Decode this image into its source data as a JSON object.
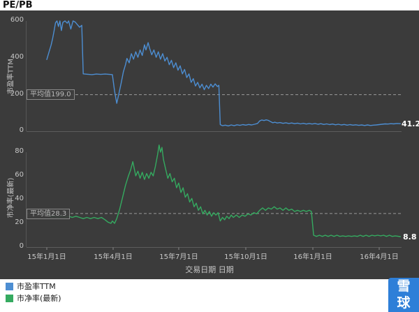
{
  "header": {
    "title": "PE/PB"
  },
  "chart_data": [
    {
      "type": "line",
      "name": "市盈率TTM",
      "ylabel": "市盈率TTM",
      "color": "#4d8ed2",
      "ylim": [
        0,
        600
      ],
      "yticks": [
        0,
        200,
        400,
        600
      ],
      "average": 199.0,
      "average_label": "平均值199.0",
      "last_value": "41.2",
      "x_unit": "day_index_from_2015-01-01",
      "points": [
        [
          0,
          390
        ],
        [
          3,
          430
        ],
        [
          6,
          470
        ],
        [
          8,
          505
        ],
        [
          10,
          545
        ],
        [
          12,
          590
        ],
        [
          14,
          600
        ],
        [
          16,
          570
        ],
        [
          18,
          600
        ],
        [
          20,
          548
        ],
        [
          22,
          592
        ],
        [
          25,
          600
        ],
        [
          28,
          588
        ],
        [
          30,
          600
        ],
        [
          33,
          556
        ],
        [
          36,
          600
        ],
        [
          39,
          594
        ],
        [
          42,
          580
        ],
        [
          45,
          566
        ],
        [
          48,
          576
        ],
        [
          50,
          312
        ],
        [
          56,
          310
        ],
        [
          62,
          308
        ],
        [
          68,
          311
        ],
        [
          74,
          309
        ],
        [
          80,
          311
        ],
        [
          86,
          309
        ],
        [
          90,
          308
        ],
        [
          93,
          218
        ],
        [
          96,
          152
        ],
        [
          99,
          205
        ],
        [
          102,
          262
        ],
        [
          105,
          322
        ],
        [
          108,
          362
        ],
        [
          110,
          396
        ],
        [
          113,
          372
        ],
        [
          116,
          422
        ],
        [
          119,
          392
        ],
        [
          122,
          432
        ],
        [
          125,
          402
        ],
        [
          128,
          442
        ],
        [
          131,
          412
        ],
        [
          134,
          470
        ],
        [
          136,
          442
        ],
        [
          139,
          482
        ],
        [
          141,
          452
        ],
        [
          144,
          416
        ],
        [
          147,
          442
        ],
        [
          150,
          402
        ],
        [
          153,
          432
        ],
        [
          156,
          392
        ],
        [
          159,
          422
        ],
        [
          162,
          382
        ],
        [
          165,
          402
        ],
        [
          168,
          362
        ],
        [
          171,
          386
        ],
        [
          174,
          346
        ],
        [
          177,
          372
        ],
        [
          180,
          332
        ],
        [
          183,
          356
        ],
        [
          186,
          312
        ],
        [
          189,
          336
        ],
        [
          192,
          292
        ],
        [
          195,
          312
        ],
        [
          198,
          266
        ],
        [
          201,
          286
        ],
        [
          204,
          246
        ],
        [
          207,
          266
        ],
        [
          210,
          236
        ],
        [
          213,
          256
        ],
        [
          216,
          226
        ],
        [
          219,
          250
        ],
        [
          222,
          232
        ],
        [
          225,
          256
        ],
        [
          228,
          240
        ],
        [
          231,
          258
        ],
        [
          234,
          243
        ],
        [
          236,
          250
        ],
        [
          238,
          36
        ],
        [
          241,
          30
        ],
        [
          245,
          33
        ],
        [
          249,
          29
        ],
        [
          253,
          34
        ],
        [
          257,
          30
        ],
        [
          261,
          35
        ],
        [
          265,
          32
        ],
        [
          269,
          36
        ],
        [
          273,
          33
        ],
        [
          277,
          37
        ],
        [
          281,
          34
        ],
        [
          285,
          38
        ],
        [
          289,
          42
        ],
        [
          292,
          56
        ],
        [
          295,
          61
        ],
        [
          298,
          58
        ],
        [
          301,
          62
        ],
        [
          304,
          59
        ],
        [
          307,
          52
        ],
        [
          310,
          46
        ],
        [
          313,
          49
        ],
        [
          316,
          45
        ],
        [
          320,
          47
        ],
        [
          324,
          43
        ],
        [
          328,
          46
        ],
        [
          332,
          42
        ],
        [
          336,
          45
        ],
        [
          340,
          41
        ],
        [
          344,
          44
        ],
        [
          348,
          40
        ],
        [
          352,
          43
        ],
        [
          356,
          39
        ],
        [
          360,
          42
        ],
        [
          364,
          39
        ],
        [
          368,
          42
        ],
        [
          372,
          38
        ],
        [
          376,
          41
        ],
        [
          380,
          37
        ],
        [
          384,
          40
        ],
        [
          388,
          36
        ],
        [
          392,
          39
        ],
        [
          396,
          35
        ],
        [
          400,
          38
        ],
        [
          404,
          34
        ],
        [
          408,
          37
        ],
        [
          412,
          33
        ],
        [
          416,
          36
        ],
        [
          420,
          33
        ],
        [
          424,
          35
        ],
        [
          428,
          32
        ],
        [
          432,
          34
        ],
        [
          436,
          31
        ],
        [
          440,
          34
        ],
        [
          444,
          31
        ],
        [
          448,
          33
        ],
        [
          452,
          34
        ],
        [
          456,
          36
        ],
        [
          460,
          38
        ],
        [
          464,
          40
        ],
        [
          468,
          39
        ],
        [
          472,
          41
        ],
        [
          476,
          40
        ],
        [
          480,
          42
        ],
        [
          485,
          41.2
        ]
      ]
    },
    {
      "type": "line",
      "name": "市净率(最新)",
      "ylabel": "市净率(最新)",
      "color": "#35aa60",
      "ylim": [
        0,
        80
      ],
      "yticks": [
        0,
        20,
        40,
        60,
        80
      ],
      "average": 28.3,
      "average_label": "平均值28.3",
      "last_value": "8.8",
      "x_unit": "day_index_from_2015-01-01",
      "points": [
        [
          0,
          29
        ],
        [
          3,
          27
        ],
        [
          6,
          25
        ],
        [
          10,
          26
        ],
        [
          15,
          25
        ],
        [
          20,
          26
        ],
        [
          25,
          25
        ],
        [
          30,
          26
        ],
        [
          35,
          25
        ],
        [
          40,
          26
        ],
        [
          45,
          25
        ],
        [
          50,
          24
        ],
        [
          55,
          25
        ],
        [
          60,
          24
        ],
        [
          65,
          25
        ],
        [
          70,
          24
        ],
        [
          75,
          25
        ],
        [
          80,
          23
        ],
        [
          84,
          21
        ],
        [
          88,
          20
        ],
        [
          90,
          22
        ],
        [
          93,
          20
        ],
        [
          96,
          24
        ],
        [
          100,
          32
        ],
        [
          104,
          42
        ],
        [
          108,
          52
        ],
        [
          112,
          60
        ],
        [
          115,
          65
        ],
        [
          118,
          72
        ],
        [
          120,
          66
        ],
        [
          122,
          60
        ],
        [
          125,
          64
        ],
        [
          128,
          58
        ],
        [
          131,
          63
        ],
        [
          134,
          57
        ],
        [
          137,
          62
        ],
        [
          140,
          58
        ],
        [
          143,
          63
        ],
        [
          146,
          60
        ],
        [
          149,
          68
        ],
        [
          152,
          78
        ],
        [
          154,
          86
        ],
        [
          156,
          80
        ],
        [
          158,
          84
        ],
        [
          160,
          74
        ],
        [
          163,
          66
        ],
        [
          166,
          58
        ],
        [
          169,
          62
        ],
        [
          172,
          55
        ],
        [
          175,
          58
        ],
        [
          178,
          50
        ],
        [
          181,
          54
        ],
        [
          184,
          46
        ],
        [
          187,
          50
        ],
        [
          190,
          42
        ],
        [
          193,
          45
        ],
        [
          196,
          38
        ],
        [
          199,
          41
        ],
        [
          202,
          34
        ],
        [
          205,
          37
        ],
        [
          208,
          31
        ],
        [
          211,
          34
        ],
        [
          214,
          28
        ],
        [
          217,
          31
        ],
        [
          220,
          27
        ],
        [
          223,
          30
        ],
        [
          226,
          26
        ],
        [
          229,
          29
        ],
        [
          232,
          27
        ],
        [
          235,
          29
        ],
        [
          238,
          22
        ],
        [
          241,
          25
        ],
        [
          244,
          23
        ],
        [
          247,
          26
        ],
        [
          250,
          24
        ],
        [
          253,
          27
        ],
        [
          256,
          25
        ],
        [
          260,
          27
        ],
        [
          264,
          25
        ],
        [
          268,
          27
        ],
        [
          272,
          26
        ],
        [
          276,
          28
        ],
        [
          280,
          27
        ],
        [
          284,
          29
        ],
        [
          288,
          28
        ],
        [
          292,
          31
        ],
        [
          296,
          33
        ],
        [
          300,
          31
        ],
        [
          304,
          33
        ],
        [
          308,
          32
        ],
        [
          312,
          34
        ],
        [
          316,
          32
        ],
        [
          320,
          33
        ],
        [
          324,
          31
        ],
        [
          328,
          33
        ],
        [
          332,
          31
        ],
        [
          336,
          32
        ],
        [
          340,
          30
        ],
        [
          344,
          31
        ],
        [
          348,
          30
        ],
        [
          352,
          31
        ],
        [
          356,
          30
        ],
        [
          360,
          31
        ],
        [
          363,
          30
        ],
        [
          366,
          10
        ],
        [
          370,
          9
        ],
        [
          374,
          10
        ],
        [
          378,
          9
        ],
        [
          382,
          10
        ],
        [
          386,
          9
        ],
        [
          390,
          10
        ],
        [
          394,
          9
        ],
        [
          398,
          10
        ],
        [
          402,
          9
        ],
        [
          406,
          9.5
        ],
        [
          410,
          9
        ],
        [
          414,
          9.5
        ],
        [
          418,
          9
        ],
        [
          422,
          9.5
        ],
        [
          426,
          9
        ],
        [
          430,
          10
        ],
        [
          434,
          9
        ],
        [
          438,
          10
        ],
        [
          442,
          9
        ],
        [
          446,
          10
        ],
        [
          450,
          9.5
        ],
        [
          454,
          10
        ],
        [
          458,
          9.5
        ],
        [
          462,
          10
        ],
        [
          466,
          9
        ],
        [
          470,
          10
        ],
        [
          474,
          9
        ],
        [
          478,
          9.5
        ],
        [
          485,
          8.8
        ]
      ]
    }
  ],
  "x_axis": {
    "title": "交易日期 日期",
    "ticks": [
      {
        "day": 0,
        "label": "15年1月1日"
      },
      {
        "day": 91,
        "label": "15年4月1日"
      },
      {
        "day": 181,
        "label": "15年7月1日"
      },
      {
        "day": 273,
        "label": "15年10月1日"
      },
      {
        "day": 365,
        "label": "16年1月1日"
      },
      {
        "day": 456,
        "label": "16年4月1日"
      }
    ]
  },
  "legend": {
    "items": [
      {
        "label": "市盈率TTM",
        "color": "#4d8ed2"
      },
      {
        "label": "市净率(最新)",
        "color": "#35aa60"
      }
    ]
  },
  "watermark": {
    "line1": "雪",
    "line2": "球"
  },
  "colors": {
    "panel_bg": "#3b3b3b",
    "average_line": "#9a9a9a",
    "axis_text": "#c8c8c8"
  }
}
